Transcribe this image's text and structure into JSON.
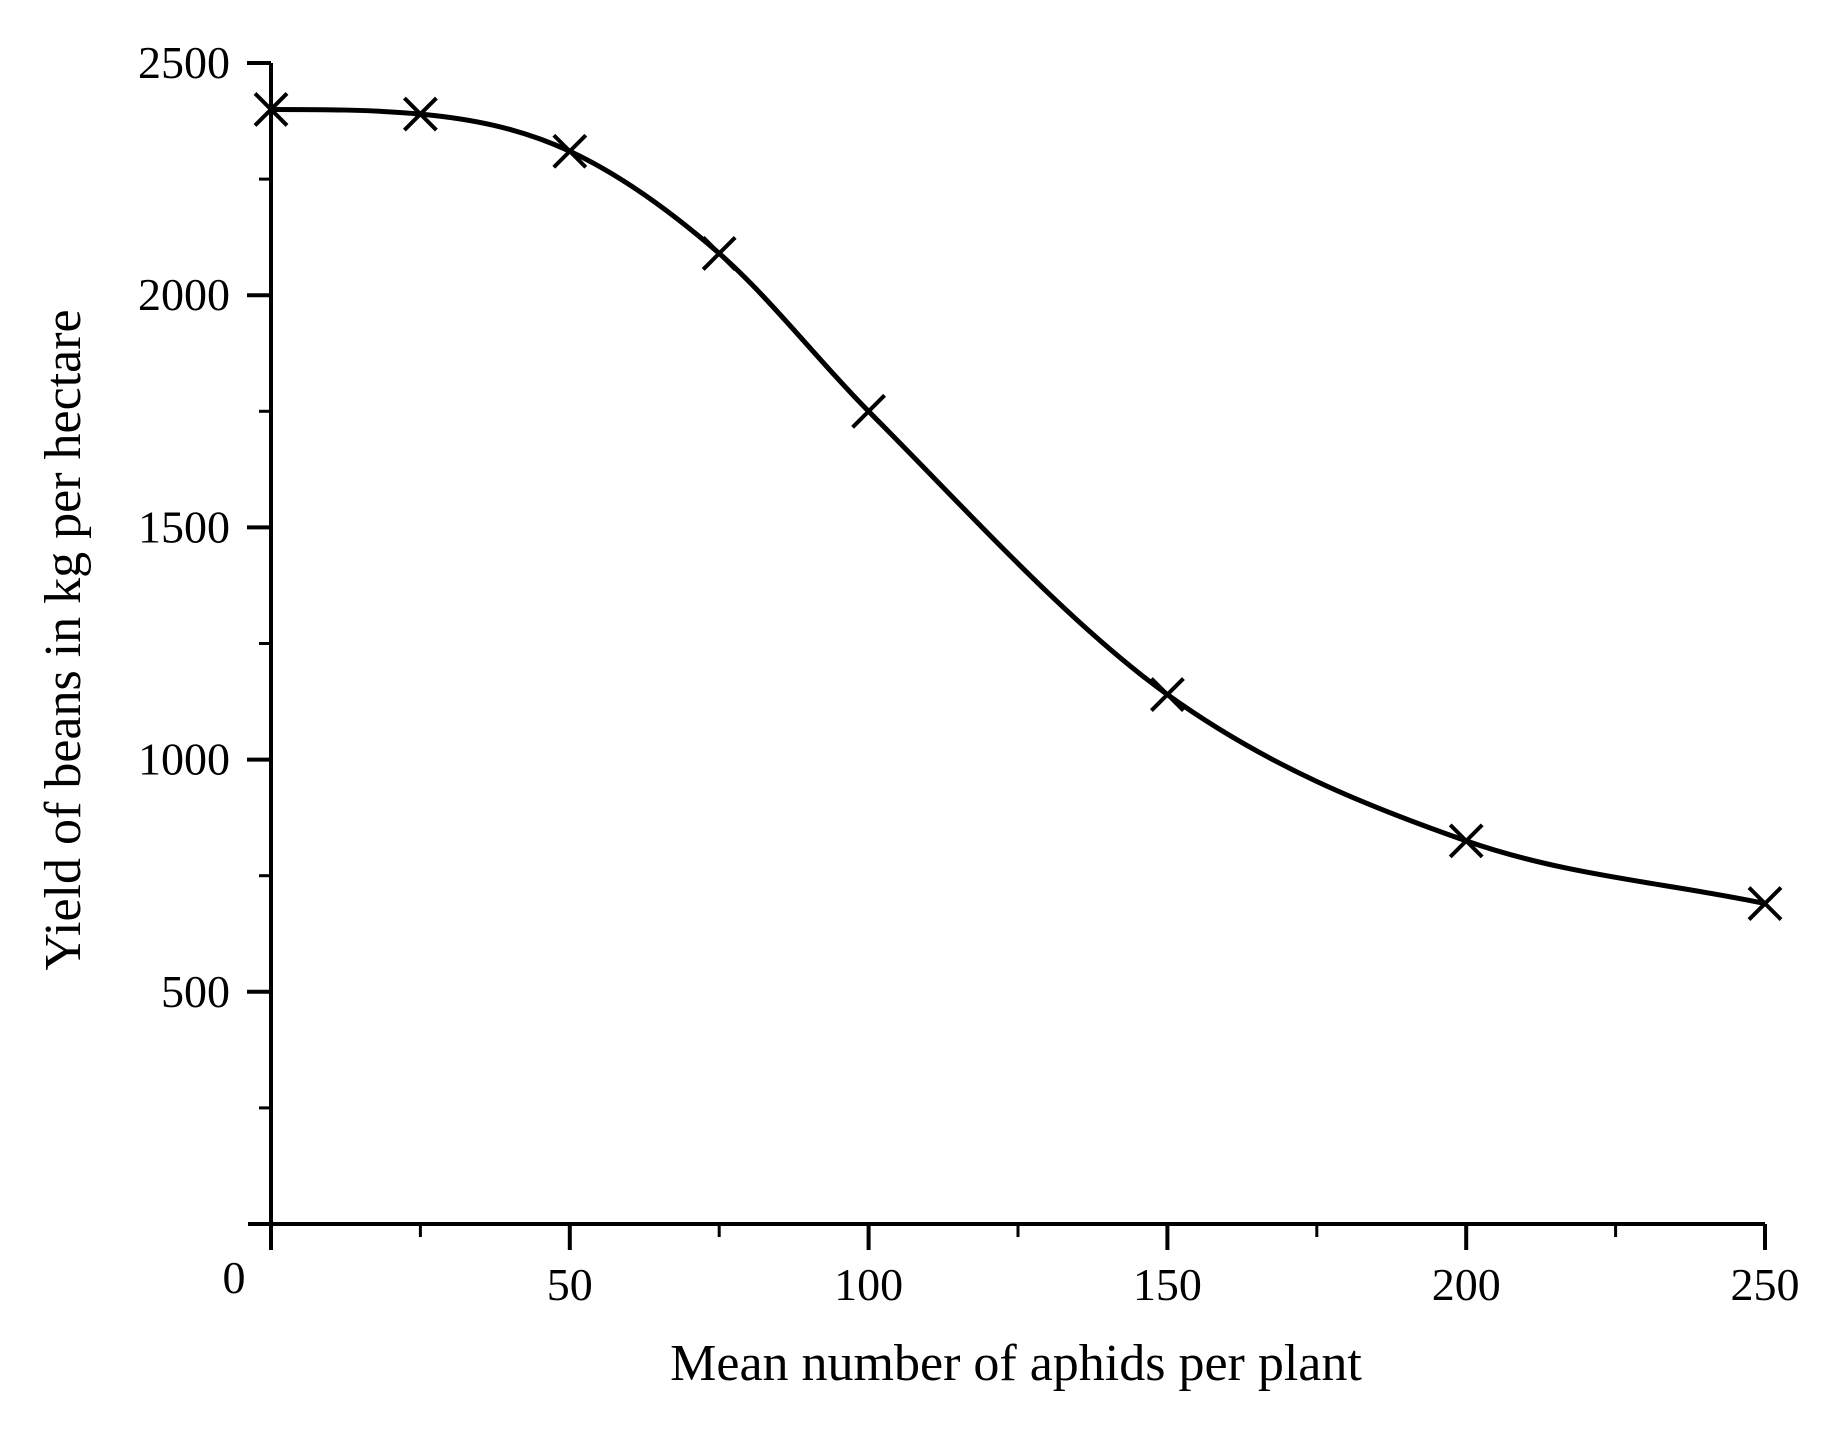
{
  "chart_data": {
    "type": "line",
    "title": "",
    "xlabel": "Mean number of aphids per plant",
    "ylabel": "Yield of beans in kg per hectare",
    "xlim": [
      0,
      250
    ],
    "ylim": [
      0,
      2500
    ],
    "x_ticks": [
      0,
      50,
      100,
      150,
      200,
      250
    ],
    "x_tick_labels": [
      "0",
      "50",
      "100",
      "150",
      "200",
      "250"
    ],
    "y_ticks": [
      500,
      1000,
      1500,
      2000,
      2500
    ],
    "y_tick_labels": [
      "500",
      "1000",
      "1500",
      "2000",
      "2500"
    ],
    "x_minor_step": 25,
    "y_minor_step": 250,
    "grid": false,
    "legend": "none",
    "marker": "x",
    "line_color": "#000000",
    "series": [
      {
        "x": [
          0,
          25,
          50,
          75,
          100,
          150,
          200,
          250
        ],
        "y": [
          2400,
          2390,
          2310,
          2090,
          1750,
          1140,
          825,
          690
        ]
      }
    ]
  }
}
